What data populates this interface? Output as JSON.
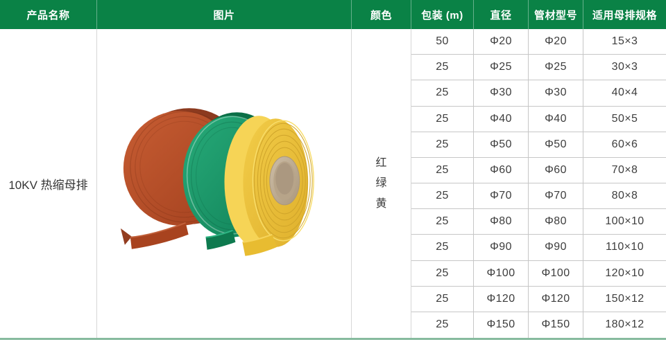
{
  "page": {
    "header_bg": "#0a8246",
    "bottom_line_color": "#86bb9e",
    "grid_border_color": "#c6c6c6",
    "text_color": "#3d3d3d"
  },
  "table": {
    "headers": [
      "产品名称",
      "图片",
      "颜色",
      "包装 (m)",
      "直径",
      "管材型号",
      "适用母排规格"
    ],
    "product_name": "10KV 热缩母排",
    "color_options": [
      "红",
      "绿",
      "黄"
    ],
    "rows": [
      [
        "50",
        "Φ20",
        "Φ20",
        "15×3"
      ],
      [
        "25",
        "Φ25",
        "Φ25",
        "30×3"
      ],
      [
        "25",
        "Φ30",
        "Φ30",
        "40×4"
      ],
      [
        "25",
        "Φ40",
        "Φ40",
        "50×5"
      ],
      [
        "25",
        "Φ50",
        "Φ50",
        "60×6"
      ],
      [
        "25",
        "Φ60",
        "Φ60",
        "70×8"
      ],
      [
        "25",
        "Φ70",
        "Φ70",
        "80×8"
      ],
      [
        "25",
        "Φ80",
        "Φ80",
        "100×10"
      ],
      [
        "25",
        "Φ90",
        "Φ90",
        "110×10"
      ],
      [
        "25",
        "Φ100",
        "Φ100",
        "120×10"
      ],
      [
        "25",
        "Φ120",
        "Φ120",
        "150×12"
      ],
      [
        "25",
        "Φ150",
        "Φ150",
        "180×12"
      ]
    ]
  },
  "product_image": {
    "subject": "three rolls of heat-shrink busbar tubing",
    "roll_colors": {
      "red": "#b04a26",
      "green": "#16a06c",
      "yellow": "#eec93f"
    },
    "core_color": "#c0ae95"
  }
}
